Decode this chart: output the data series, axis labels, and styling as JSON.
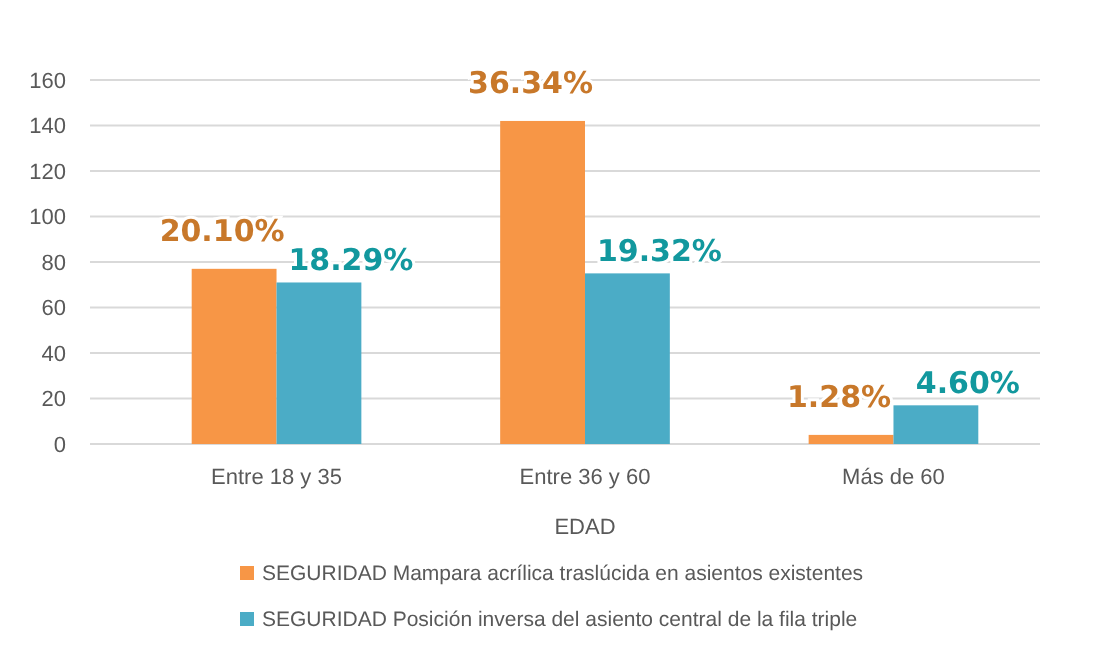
{
  "chart_data": {
    "type": "bar",
    "xlabel": "EDAD",
    "categories": [
      "Entre 18 y 35",
      "Entre 36 y 60",
      "Más de 60"
    ],
    "series": [
      {
        "name": "SEGURIDAD Mampara acrílica traslúcida en asientos existentes",
        "color": "#f79646",
        "values": [
          77,
          142,
          4
        ]
      },
      {
        "name": "SEGURIDAD Posición inversa del asiento central de la fila triple",
        "color": "#4bacc6",
        "values": [
          71,
          75,
          17
        ]
      }
    ],
    "annotations": [
      {
        "text": "20.10%",
        "x": "Entre 18 y 35",
        "y": 77
      },
      {
        "text": "36.34%",
        "x": "Entre 36 y 60",
        "y": 142
      },
      {
        "text": "1.28%",
        "x": "Más de 60",
        "y": 4
      },
      {
        "text": "18.29%",
        "x": "Entre 18 y 35",
        "y": 71
      },
      {
        "text": "19.32%",
        "x": "Entre 36 y 60",
        "y": 75
      },
      {
        "text": "4.60%",
        "x": "Más de 60",
        "y": 17
      }
    ],
    "ylim": [
      0,
      160
    ],
    "yticks": [
      0,
      20,
      40,
      60,
      80,
      100,
      120,
      140,
      160
    ],
    "grid": "y",
    "legend": "bottom"
  }
}
